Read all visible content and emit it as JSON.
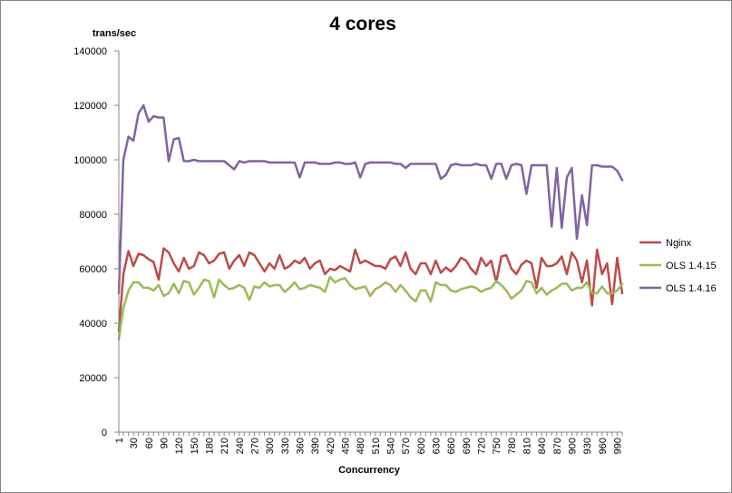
{
  "chart_data": {
    "type": "line",
    "title": "4 cores",
    "xlabel": "Concurrency",
    "ylabel": "trans/sec",
    "ylim": [
      0,
      140000
    ],
    "yticks": [
      0,
      20000,
      40000,
      60000,
      80000,
      100000,
      120000,
      140000
    ],
    "ytick_labels": [
      "0",
      "20000",
      "40000",
      "60000",
      "80000",
      "100000",
      "120000",
      "140000"
    ],
    "xtick_labels": [
      "1",
      "30",
      "60",
      "90",
      "120",
      "150",
      "180",
      "210",
      "240",
      "270",
      "300",
      "330",
      "360",
      "390",
      "420",
      "450",
      "480",
      "510",
      "540",
      "570",
      "600",
      "630",
      "660",
      "690",
      "720",
      "750",
      "780",
      "810",
      "840",
      "870",
      "900",
      "930",
      "960",
      "990"
    ],
    "grid": false,
    "legend_position": "right",
    "x": [
      1,
      10,
      20,
      30,
      40,
      50,
      60,
      70,
      80,
      90,
      100,
      110,
      120,
      130,
      140,
      150,
      160,
      170,
      180,
      190,
      200,
      210,
      220,
      230,
      240,
      250,
      260,
      270,
      280,
      290,
      300,
      310,
      320,
      330,
      340,
      350,
      360,
      370,
      380,
      390,
      400,
      410,
      420,
      430,
      440,
      450,
      460,
      470,
      480,
      490,
      500,
      510,
      520,
      530,
      540,
      550,
      560,
      570,
      580,
      590,
      600,
      610,
      620,
      630,
      640,
      650,
      660,
      670,
      680,
      690,
      700,
      710,
      720,
      730,
      740,
      750,
      760,
      770,
      780,
      790,
      800,
      810,
      820,
      830,
      840,
      850,
      860,
      870,
      880,
      890,
      900,
      910,
      920,
      930,
      940,
      950,
      960,
      970,
      980,
      990,
      1000
    ],
    "series": [
      {
        "name": "Nginx",
        "color": "#be4b48",
        "values": [
          37000,
          58000,
          66500,
          61000,
          65500,
          65000,
          63500,
          62500,
          56000,
          67500,
          66000,
          62000,
          59000,
          64000,
          60000,
          61000,
          66000,
          65000,
          62000,
          63000,
          65500,
          66000,
          60000,
          63000,
          65000,
          61000,
          66000,
          65000,
          62000,
          59000,
          62000,
          60000,
          65000,
          60000,
          61000,
          63000,
          62000,
          64000,
          60000,
          62000,
          63000,
          58000,
          60000,
          59500,
          61000,
          60000,
          59000,
          67000,
          62000,
          63000,
          62000,
          61000,
          61000,
          60000,
          63500,
          64500,
          61000,
          66000,
          60000,
          58000,
          62000,
          62000,
          58000,
          63000,
          58500,
          60500,
          59000,
          61000,
          64000,
          63000,
          60000,
          58000,
          64000,
          61000,
          63000,
          55000,
          64500,
          65000,
          60000,
          58000,
          61500,
          63000,
          62000,
          53000,
          64000,
          61000,
          61000,
          62000,
          64500,
          58000,
          66000,
          63000,
          55000,
          63000,
          46500,
          67000,
          58000,
          62000,
          47000,
          64000,
          51000
        ]
      },
      {
        "name": "OLS 1.4.15",
        "color": "#9bbb59",
        "values": [
          34000,
          45500,
          52000,
          55000,
          55000,
          53000,
          53000,
          52000,
          54000,
          50000,
          51000,
          54500,
          51000,
          55500,
          55000,
          50500,
          53000,
          56000,
          55500,
          49500,
          56000,
          54000,
          52500,
          53000,
          54000,
          53000,
          48500,
          53500,
          53000,
          55000,
          53500,
          54000,
          54000,
          51500,
          53000,
          55000,
          52500,
          53000,
          54000,
          53500,
          53000,
          51500,
          57000,
          55000,
          56000,
          56500,
          54000,
          52500,
          53000,
          53500,
          50000,
          52500,
          53500,
          55000,
          54000,
          51500,
          54000,
          52000,
          49500,
          48000,
          52000,
          52000,
          48000,
          55000,
          54000,
          54000,
          52000,
          51500,
          52500,
          53000,
          53500,
          53000,
          51500,
          52500,
          53000,
          55500,
          54000,
          52000,
          49000,
          50500,
          52000,
          55500,
          55000,
          51000,
          53000,
          50500,
          52000,
          53000,
          54500,
          54500,
          52000,
          53000,
          53000,
          55000,
          51000,
          51000,
          53500,
          51000,
          51000,
          52000,
          54500
        ]
      },
      {
        "name": "OLS 1.4.16",
        "color": "#8064a2",
        "values": [
          51000,
          100000,
          108500,
          107000,
          117000,
          120000,
          114000,
          116000,
          115500,
          115500,
          99500,
          107500,
          108000,
          99500,
          99500,
          100000,
          99500,
          99500,
          99500,
          99500,
          99500,
          99500,
          98000,
          96500,
          99500,
          99000,
          99500,
          99500,
          99500,
          99500,
          99000,
          99000,
          99000,
          99000,
          99000,
          99000,
          93500,
          99000,
          99000,
          99000,
          98500,
          98500,
          98500,
          99000,
          99000,
          98500,
          98500,
          99000,
          93500,
          98500,
          99000,
          99000,
          99000,
          99000,
          99000,
          98500,
          98500,
          97000,
          98500,
          98500,
          98500,
          98500,
          98500,
          98500,
          93000,
          94500,
          98000,
          98500,
          98000,
          98000,
          98000,
          98500,
          98000,
          98000,
          93000,
          98500,
          98500,
          93000,
          98000,
          98500,
          98000,
          87500,
          98000,
          98000,
          98000,
          98000,
          75500,
          97000,
          75000,
          93500,
          97000,
          71000,
          87000,
          76000,
          98000,
          98000,
          97500,
          97500,
          97500,
          96000,
          92500
        ]
      }
    ]
  }
}
